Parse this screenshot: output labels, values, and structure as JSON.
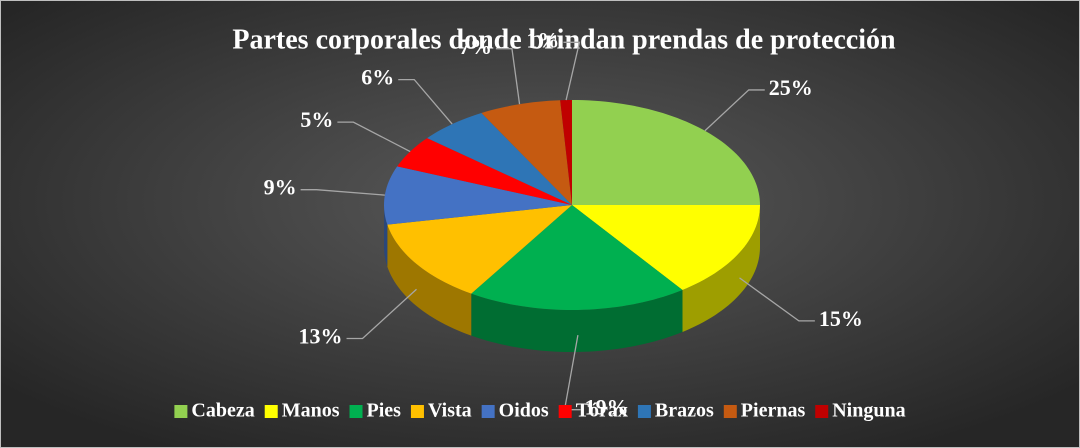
{
  "chart_data": {
    "type": "pie",
    "title": "Partes corporales donde brindan prendas de protección",
    "categories": [
      "Cabeza",
      "Manos",
      "Pies",
      "Vista",
      "Oidos",
      "Tórax",
      "Brazos",
      "Piernas",
      "Ninguna"
    ],
    "values": [
      25,
      15,
      19,
      13,
      9,
      5,
      6,
      7,
      1
    ],
    "value_labels": [
      "25%",
      "15%",
      "19%",
      "13%",
      "9%",
      "5%",
      "6%",
      "7%",
      "1%"
    ],
    "colors": [
      "#92d050",
      "#ffff00",
      "#00b050",
      "#ffc000",
      "#4472c4",
      "#ff0000",
      "#2e75b6",
      "#c55a11",
      "#c00000"
    ],
    "legend": "bottom"
  }
}
